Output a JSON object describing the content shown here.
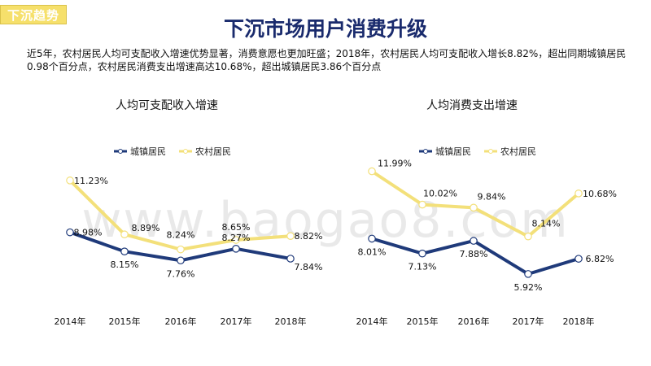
{
  "tag": {
    "label": "下沉趋势"
  },
  "page": {
    "title": "下沉市场用户消费升级",
    "intro": "近5年，农村居民人均可支配收入增速优势显著，消费意愿也更加旺盛；2018年，农村居民人均可支配收入增长8.82%，超出同期城镇居民0.98个百分点，农村居民消费支出增速高达10.68%，超出城镇居民3.86个百分点",
    "watermark": "www.baogao8.com"
  },
  "colors": {
    "urban": "#1f3a7a",
    "rural": "#f3e07a",
    "title": "#1a2b6d",
    "tag": "#f6e06b"
  },
  "chart_data": [
    {
      "type": "line",
      "title": "人均可支配收入增速",
      "categories": [
        "2014年",
        "2015年",
        "2016年",
        "2017年",
        "2018年"
      ],
      "legend_position": "top",
      "grid": false,
      "ylim": [
        6.5,
        12
      ],
      "series": [
        {
          "name": "城镇居民",
          "key": "urban",
          "values": [
            8.98,
            8.15,
            7.76,
            8.27,
            7.84
          ],
          "labels": [
            "8.98%",
            "8.15%",
            "7.76%",
            "8.27%",
            "7.84%"
          ]
        },
        {
          "name": "农村居民",
          "key": "rural",
          "values": [
            11.23,
            8.89,
            8.24,
            8.65,
            8.82
          ],
          "labels": [
            "11.23%",
            "8.89%",
            "8.24%",
            "8.65%",
            "8.82%"
          ]
        }
      ]
    },
    {
      "type": "line",
      "title": "人均消费支出增速",
      "categories": [
        "2014年",
        "2015年",
        "2016年",
        "2017年",
        "2018年"
      ],
      "legend_position": "top",
      "grid": false,
      "ylim": [
        5,
        12.5
      ],
      "series": [
        {
          "name": "城镇居民",
          "key": "urban",
          "values": [
            8.01,
            7.13,
            7.88,
            5.92,
            6.82
          ],
          "labels": [
            "8.01%",
            "7.13%",
            "7.88%",
            "5.92%",
            "6.82%"
          ]
        },
        {
          "name": "农村居民",
          "key": "rural",
          "values": [
            11.99,
            10.02,
            9.84,
            8.14,
            10.68
          ],
          "labels": [
            "11.99%",
            "10.02%",
            "9.84%",
            "8.14%",
            "10.68%"
          ]
        }
      ]
    }
  ]
}
